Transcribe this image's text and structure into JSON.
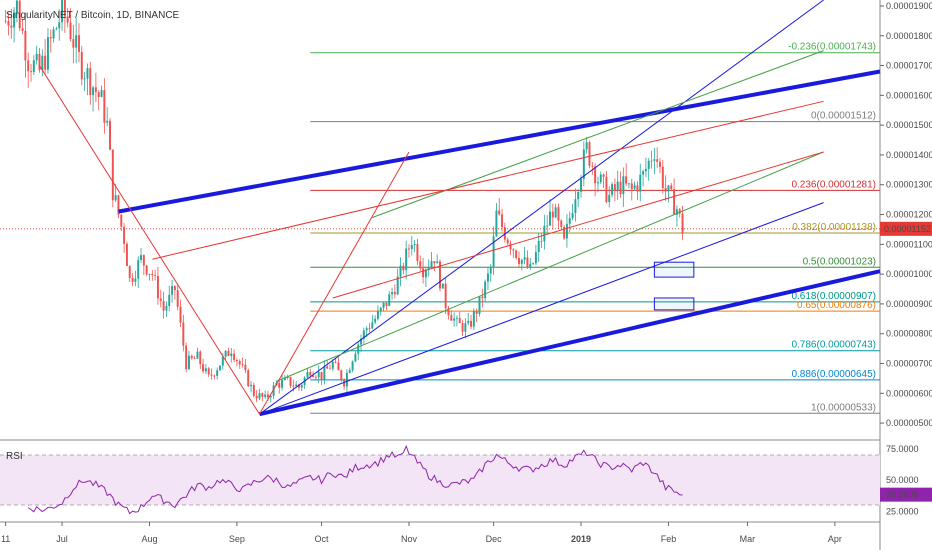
{
  "header": {
    "title": "SingularityNET / Bitcoin, 1D, BINANCE"
  },
  "chart_data": {
    "type": "candlestick",
    "price_axis": {
      "min": 4.5e-06,
      "max": 1.92e-05,
      "ticks": [
        "0.00001900",
        "0.00001800",
        "0.00001700",
        "0.00001600",
        "0.00001500",
        "0.00001400",
        "0.00001300",
        "0.00001200",
        "0.00001100",
        "0.00001000",
        "0.00000900",
        "0.00000800",
        "0.00000700",
        "0.00000600",
        "0.00000500"
      ]
    },
    "current_price": "0.00001152",
    "x_axis": {
      "labels": [
        {
          "text": "11",
          "t": 0
        },
        {
          "text": "Jul",
          "t": 20
        },
        {
          "text": "Aug",
          "t": 51
        },
        {
          "text": "Sep",
          "t": 82
        },
        {
          "text": "Oct",
          "t": 112
        },
        {
          "text": "Nov",
          "t": 143
        },
        {
          "text": "Dec",
          "t": 173
        },
        {
          "text": "2019",
          "t": 204
        },
        {
          "text": "Feb",
          "t": 235
        },
        {
          "text": "Mar",
          "t": 263
        },
        {
          "text": "Apr",
          "t": 294
        }
      ],
      "range": [
        -2,
        310
      ]
    },
    "price_path": [
      [
        0,
        1.85e-05
      ],
      [
        4,
        1.9e-05
      ],
      [
        8,
        1.72e-05
      ],
      [
        12,
        1.68e-05
      ],
      [
        16,
        1.78e-05
      ],
      [
        20,
        1.88e-05
      ],
      [
        22,
        1.85e-05
      ],
      [
        26,
        1.72e-05
      ],
      [
        30,
        1.65e-05
      ],
      [
        34,
        1.58e-05
      ],
      [
        36,
        1.5e-05
      ],
      [
        38,
        1.28e-05
      ],
      [
        40,
        1.2e-05
      ],
      [
        42,
        1.12e-05
      ],
      [
        44,
        9.8e-06
      ],
      [
        48,
        1.05e-05
      ],
      [
        52,
        1e-05
      ],
      [
        56,
        8.8e-06
      ],
      [
        60,
        9.5e-06
      ],
      [
        64,
        7e-06
      ],
      [
        68,
        7.2e-06
      ],
      [
        72,
        6.5e-06
      ],
      [
        76,
        7e-06
      ],
      [
        80,
        7.5e-06
      ],
      [
        84,
        6.8e-06
      ],
      [
        88,
        6e-06
      ],
      [
        92,
        5.8e-06
      ],
      [
        96,
        6.3e-06
      ],
      [
        100,
        6.4e-06
      ],
      [
        104,
        6.2e-06
      ],
      [
        108,
        6.8e-06
      ],
      [
        112,
        6.6e-06
      ],
      [
        116,
        7e-06
      ],
      [
        120,
        6.4e-06
      ],
      [
        124,
        7.5e-06
      ],
      [
        128,
        8.2e-06
      ],
      [
        132,
        8.6e-06
      ],
      [
        136,
        9.2e-06
      ],
      [
        140,
        1e-05
      ],
      [
        144,
        1.12e-05
      ],
      [
        148,
        1.02e-05
      ],
      [
        152,
        1.06e-05
      ],
      [
        156,
        9e-06
      ],
      [
        160,
        8.3e-06
      ],
      [
        164,
        8.2e-06
      ],
      [
        168,
        9e-06
      ],
      [
        172,
        1.02e-05
      ],
      [
        174,
        1.2e-05
      ],
      [
        178,
        1.12e-05
      ],
      [
        182,
        1.06e-05
      ],
      [
        186,
        1.01e-05
      ],
      [
        190,
        1.12e-05
      ],
      [
        194,
        1.22e-05
      ],
      [
        198,
        1.1e-05
      ],
      [
        202,
        1.28e-05
      ],
      [
        206,
        1.42e-05
      ],
      [
        210,
        1.32e-05
      ],
      [
        214,
        1.26e-05
      ],
      [
        218,
        1.3e-05
      ],
      [
        222,
        1.28e-05
      ],
      [
        226,
        1.33e-05
      ],
      [
        230,
        1.42e-05
      ],
      [
        234,
        1.28e-05
      ],
      [
        238,
        1.22e-05
      ],
      [
        240,
        1.15e-05
      ]
    ],
    "fib_levels": [
      {
        "ratio": "-0.236",
        "value": 1.743e-05,
        "label": "-0.236(0.00001743)",
        "color": "#4caf50"
      },
      {
        "ratio": "0",
        "value": 1.512e-05,
        "label": "0(0.00001512)",
        "color": "#7e7e7e"
      },
      {
        "ratio": "0.236",
        "value": 1.281e-05,
        "label": "0.236(0.00001281)",
        "color": "#d32f2f"
      },
      {
        "ratio": "0.382",
        "value": 1.138e-05,
        "label": "0.382(0.00001138)",
        "color": "#9e9d24"
      },
      {
        "ratio": "0.5",
        "value": 1.023e-05,
        "label": "0.5(0.00001023)",
        "color": "#388e3c"
      },
      {
        "ratio": "0.618",
        "value": 9.07e-06,
        "label": "0.618(0.00000907)",
        "color": "#009688"
      },
      {
        "ratio": "0.65",
        "value": 8.76e-06,
        "label": "0.65(0.00000876)",
        "color": "#f57c00"
      },
      {
        "ratio": "0.786",
        "value": 7.43e-06,
        "label": "0.786(0.00000743)",
        "color": "#0097a7"
      },
      {
        "ratio": "0.886",
        "value": 6.45e-06,
        "label": "0.886(0.00000645)",
        "color": "#0288d1"
      },
      {
        "ratio": "1",
        "value": 5.33e-06,
        "label": "1(0.00000533)",
        "color": "#7e7e7e"
      }
    ],
    "fib_start_t": 108,
    "trendlines": [
      {
        "name": "thick-upper",
        "color": "#1a1adc",
        "weight": "thick",
        "t1": 40,
        "p1": 1.21e-05,
        "t2": 310,
        "p2": 1.68e-05
      },
      {
        "name": "thick-lower",
        "color": "#1a1adc",
        "weight": "thick",
        "t1": 90,
        "p1": 5.3e-06,
        "t2": 310,
        "p2": 1.01e-05
      },
      {
        "name": "thin-blue-upper",
        "color": "#1a1adc",
        "weight": "thin",
        "t1": 90,
        "p1": 5.3e-06,
        "t2": 290,
        "p2": 1.92e-05
      },
      {
        "name": "thin-blue-lower",
        "color": "#1a1adc",
        "weight": "thin",
        "t1": 90,
        "p1": 5.3e-06,
        "t2": 290,
        "p2": 1.24e-05
      },
      {
        "name": "green-upper",
        "color": "#43a047",
        "weight": "thin",
        "t1": 130,
        "p1": 1.19e-05,
        "t2": 290,
        "p2": 1.75e-05
      },
      {
        "name": "green-lower",
        "color": "#43a047",
        "weight": "thin",
        "t1": 96,
        "p1": 6.4e-06,
        "t2": 290,
        "p2": 1.41e-05
      },
      {
        "name": "red-upper",
        "color": "#e53935",
        "weight": "thin",
        "t1": 52,
        "p1": 1.05e-05,
        "t2": 290,
        "p2": 1.58e-05
      },
      {
        "name": "red-lower",
        "color": "#e53935",
        "weight": "thin",
        "t1": 116,
        "p1": 9.2e-06,
        "t2": 290,
        "p2": 1.41e-05
      },
      {
        "name": "red-swing-down",
        "color": "#e53935",
        "weight": "thin",
        "t1": 12,
        "p1": 1.7e-05,
        "t2": 90,
        "p2": 5.3e-06
      },
      {
        "name": "red-swing-up",
        "color": "#e53935",
        "weight": "thin",
        "t1": 90,
        "p1": 5.3e-06,
        "t2": 143,
        "p2": 1.41e-05
      }
    ],
    "boxes": [
      {
        "t1": 230,
        "t2": 244,
        "p1": 1.04e-05,
        "p2": 9.9e-06,
        "color": "#1a1adc"
      },
      {
        "t1": 230,
        "t2": 244,
        "p1": 9.2e-06,
        "p2": 8.8e-06,
        "color": "#1a1adc"
      }
    ],
    "rsi": {
      "label": "RSI",
      "ticks": [
        "75.0000",
        "50.0000",
        "25.0000"
      ],
      "current": "38.2805",
      "upper": 70,
      "lower": 30,
      "min": 18,
      "max": 82,
      "path": [
        [
          8,
          28
        ],
        [
          14,
          26
        ],
        [
          20,
          32
        ],
        [
          24,
          44
        ],
        [
          28,
          50
        ],
        [
          32,
          46
        ],
        [
          36,
          40
        ],
        [
          40,
          30
        ],
        [
          44,
          24
        ],
        [
          48,
          28
        ],
        [
          52,
          38
        ],
        [
          56,
          34
        ],
        [
          60,
          30
        ],
        [
          64,
          38
        ],
        [
          68,
          46
        ],
        [
          72,
          44
        ],
        [
          76,
          50
        ],
        [
          80,
          46
        ],
        [
          84,
          42
        ],
        [
          88,
          48
        ],
        [
          92,
          52
        ],
        [
          96,
          50
        ],
        [
          100,
          44
        ],
        [
          104,
          48
        ],
        [
          108,
          52
        ],
        [
          112,
          50
        ],
        [
          116,
          56
        ],
        [
          120,
          52
        ],
        [
          124,
          60
        ],
        [
          128,
          62
        ],
        [
          132,
          64
        ],
        [
          136,
          70
        ],
        [
          140,
          68
        ],
        [
          142,
          75
        ],
        [
          146,
          64
        ],
        [
          150,
          54
        ],
        [
          154,
          48
        ],
        [
          158,
          46
        ],
        [
          162,
          48
        ],
        [
          166,
          50
        ],
        [
          170,
          62
        ],
        [
          174,
          70
        ],
        [
          178,
          64
        ],
        [
          182,
          60
        ],
        [
          186,
          58
        ],
        [
          190,
          62
        ],
        [
          194,
          66
        ],
        [
          198,
          62
        ],
        [
          202,
          68
        ],
        [
          206,
          72
        ],
        [
          210,
          64
        ],
        [
          214,
          60
        ],
        [
          218,
          62
        ],
        [
          222,
          58
        ],
        [
          226,
          64
        ],
        [
          230,
          56
        ],
        [
          234,
          44
        ],
        [
          238,
          40
        ],
        [
          240,
          38
        ]
      ]
    }
  },
  "colors": {
    "bull": "#26a69a",
    "bear": "#ef5350",
    "price_marker": "#e53935",
    "rsi_line": "#8e24aa",
    "rsi_fill": "#f3e5f5"
  }
}
